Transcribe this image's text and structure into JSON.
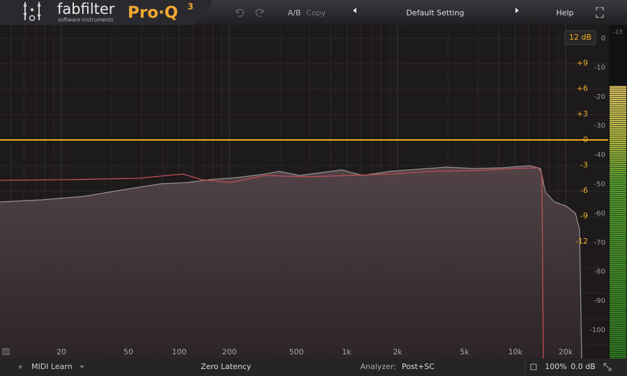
{
  "header": {
    "brand": "fabfilter",
    "brand_sub": "software instruments",
    "product": "Pro·Q",
    "version": "3",
    "ab": "A/B",
    "copy": "Copy",
    "preset": "Default Setting",
    "help": "Help"
  },
  "display": {
    "range_button": "12 dB",
    "meter_top": "-13",
    "gain_labels": [
      "+9",
      "+6",
      "+3",
      "0",
      "-3",
      "-6",
      "-9",
      "-12"
    ],
    "analyzer_labels": [
      "0",
      "-10",
      "-20",
      "-30",
      "-40",
      "-50",
      "-60",
      "-70",
      "-80",
      "-90",
      "-100"
    ],
    "freq_labels": [
      "20",
      "50",
      "100",
      "200",
      "500",
      "1k",
      "2k",
      "5k",
      "10k",
      "20k"
    ]
  },
  "footer": {
    "midi": "MIDI Learn",
    "latency": "Zero Latency",
    "analyzer_label": "Analyzer:",
    "analyzer_value": "Post+SC",
    "zoom": "100%",
    "output_gain": "0.0 dB"
  }
}
